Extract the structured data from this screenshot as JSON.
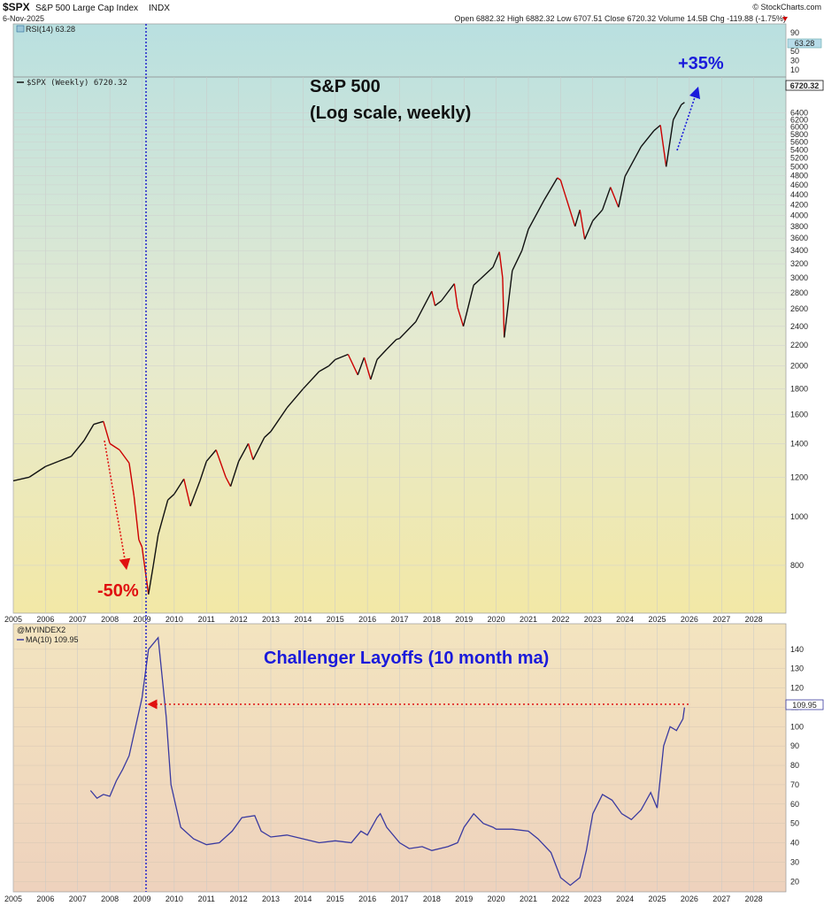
{
  "header": {
    "symbol": "$SPX",
    "name": "S&P 500 Large Cap Index",
    "exchange": "INDX",
    "date": "6-Nov-2025",
    "watermark": "© StockCharts.com",
    "ohlc": "Open 6882.32  High 6882.32  Low 6707.51  Close 6720.32  Volume 14.5B  Chg -119.88 (-1.75%)"
  },
  "colors": {
    "price_up": "#111111",
    "price_down": "#cc0000",
    "layoffs_line": "#3a3aa0",
    "annotation_red": "#e01010",
    "annotation_blue": "#1a1adb",
    "vertical_marker": "#2222cc"
  },
  "chart_data": [
    {
      "type": "line",
      "name": "rsi-strip",
      "legend": "RSI(14) 63.28",
      "value_tag": "63.28",
      "y_ticks": [
        90,
        70,
        50,
        30,
        10
      ]
    },
    {
      "type": "line",
      "log_scale": true,
      "legend": "$SPX (Weekly) 6720.32",
      "value_tag": "6720.32",
      "title_line1": "S&P 500",
      "title_line2": "(Log scale, weekly)",
      "annotations": {
        "drawdown": "-50%",
        "rally": "+35%"
      },
      "ylim": [
        650,
        7400
      ],
      "y_ticks": [
        800,
        1000,
        1200,
        1400,
        1600,
        1800,
        2000,
        2200,
        2400,
        2600,
        2800,
        3000,
        3200,
        3400,
        3600,
        3800,
        4000,
        4200,
        4400,
        4600,
        4800,
        5000,
        5200,
        5400,
        5600,
        5800,
        6000,
        6200,
        6400
      ],
      "x": [
        2005.0,
        2005.5,
        2006.0,
        2006.4,
        2006.8,
        2007.2,
        2007.5,
        2007.8,
        2008.0,
        2008.3,
        2008.6,
        2008.75,
        2008.9,
        2009.0,
        2009.2,
        2009.35,
        2009.5,
        2009.8,
        2010.0,
        2010.3,
        2010.5,
        2010.8,
        2011.0,
        2011.3,
        2011.6,
        2011.75,
        2012.0,
        2012.3,
        2012.45,
        2012.8,
        2013.0,
        2013.5,
        2014.0,
        2014.5,
        2014.8,
        2015.0,
        2015.4,
        2015.7,
        2015.9,
        2016.1,
        2016.3,
        2016.6,
        2016.9,
        2017.0,
        2017.5,
        2018.0,
        2018.1,
        2018.3,
        2018.7,
        2018.8,
        2018.98,
        2019.3,
        2019.5,
        2019.9,
        2020.1,
        2020.2,
        2020.25,
        2020.5,
        2020.8,
        2021.0,
        2021.5,
        2021.9,
        2022.0,
        2022.45,
        2022.6,
        2022.75,
        2023.0,
        2023.3,
        2023.55,
        2023.8,
        2024.0,
        2024.5,
        2024.9,
        2025.1,
        2025.28,
        2025.5,
        2025.75,
        2025.85
      ],
      "values": [
        1180,
        1200,
        1260,
        1290,
        1320,
        1420,
        1530,
        1550,
        1400,
        1360,
        1280,
        1100,
        900,
        870,
        700,
        800,
        920,
        1080,
        1110,
        1190,
        1050,
        1180,
        1290,
        1360,
        1200,
        1150,
        1290,
        1400,
        1300,
        1440,
        1480,
        1650,
        1800,
        1950,
        2000,
        2060,
        2110,
        1920,
        2080,
        1880,
        2060,
        2160,
        2260,
        2270,
        2450,
        2820,
        2640,
        2700,
        2920,
        2620,
        2400,
        2900,
        2980,
        3150,
        3380,
        3000,
        2280,
        3100,
        3400,
        3750,
        4300,
        4750,
        4700,
        3800,
        4100,
        3580,
        3900,
        4100,
        4550,
        4150,
        4780,
        5480,
        5900,
        6050,
        5000,
        6200,
        6650,
        6720
      ]
    },
    {
      "type": "line",
      "legend_title": "@MYINDEX2",
      "legend": "MA(10) 109.95",
      "value_tag": "109.95",
      "title": "Challenger Layoffs (10 month ma)",
      "ylim": [
        16,
        150
      ],
      "y_ticks": [
        20,
        30,
        40,
        50,
        60,
        70,
        80,
        90,
        100,
        110,
        120,
        130,
        140
      ],
      "x": [
        2007.4,
        2007.6,
        2007.8,
        2008.0,
        2008.2,
        2008.4,
        2008.6,
        2008.8,
        2009.0,
        2009.2,
        2009.5,
        2009.75,
        2009.9,
        2010.2,
        2010.6,
        2011.0,
        2011.4,
        2011.8,
        2012.1,
        2012.5,
        2012.7,
        2013.0,
        2013.5,
        2014.0,
        2014.5,
        2015.0,
        2015.5,
        2015.8,
        2016.0,
        2016.3,
        2016.4,
        2016.6,
        2017.0,
        2017.3,
        2017.7,
        2018.0,
        2018.5,
        2018.8,
        2019.0,
        2019.3,
        2019.6,
        2019.9,
        2020.0,
        2020.5,
        2021.0,
        2021.3,
        2021.7,
        2022.0,
        2022.3,
        2022.6,
        2022.8,
        2023.0,
        2023.3,
        2023.6,
        2023.9,
        2024.2,
        2024.5,
        2024.8,
        2025.0,
        2025.2,
        2025.4,
        2025.6,
        2025.8,
        2025.85
      ],
      "values": [
        67,
        63,
        65,
        64,
        72,
        78,
        85,
        100,
        115,
        140,
        146,
        105,
        70,
        48,
        42,
        39,
        40,
        46,
        53,
        54,
        46,
        43,
        44,
        42,
        40,
        41,
        40,
        46,
        44,
        53,
        55,
        48,
        40,
        37,
        38,
        36,
        38,
        40,
        48,
        55,
        50,
        48,
        47,
        47,
        46,
        42,
        35,
        22,
        18,
        22,
        36,
        55,
        65,
        62,
        55,
        52,
        57,
        66,
        58,
        90,
        100,
        98,
        104,
        109.95
      ]
    }
  ],
  "x_axis": {
    "years": [
      "2005",
      "2006",
      "2007",
      "2008",
      "2009",
      "2010",
      "2011",
      "2012",
      "2013",
      "2014",
      "2015",
      "2016",
      "2017",
      "2018",
      "2019",
      "2020",
      "2021",
      "2022",
      "2023",
      "2024",
      "2025",
      "2026",
      "2027",
      "2028"
    ]
  }
}
